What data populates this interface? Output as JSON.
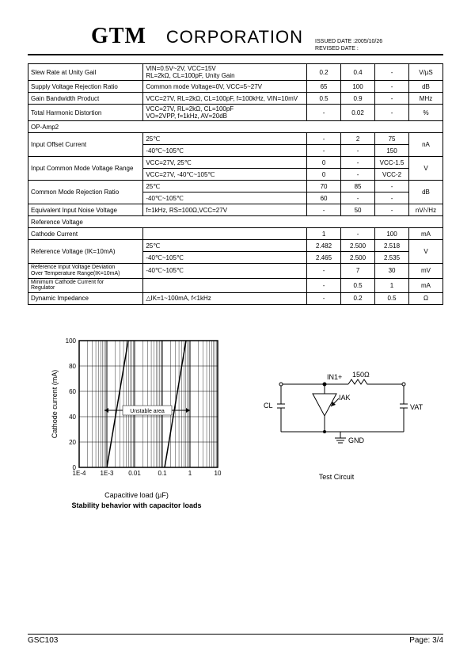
{
  "header": {
    "logo": "GTM",
    "corp": "CORPORATION",
    "issued_label": "ISSUED DATE  :2005/10/26",
    "revised_label": "REVISED DATE :"
  },
  "table": {
    "rows": [
      {
        "p": "Slew Rate at Unity Gail",
        "cond_a": "VIN=0.5V~2V, VCC=15V",
        "cond_b": "RL=2kΩ, CL=100pF, Unity Gain",
        "v1": "0.2",
        "v2": "0.4",
        "v3": "-",
        "u": "V/µS",
        "twocond": true
      },
      {
        "p": "Supply Voltage Rejection Ratio",
        "cond": "Common mode Voltage=0V, VCC=5~27V",
        "v1": "65",
        "v2": "100",
        "v3": "-",
        "u": "dB"
      },
      {
        "p": "Gain Bandwidth Product",
        "cond": "VCC=27V, RL=2kΩ, CL=100pF, f=100kHz, VIN=10mV",
        "v1": "0.5",
        "v2": "0.9",
        "v3": "-",
        "u": "MHz"
      },
      {
        "p": "Total Harmonic Distortion",
        "cond_a": "VCC=27V, RL=2kΩ, CL=100pF",
        "cond_b": "VO=2VPP, f=1kHz, AV=20dB",
        "v1": "-",
        "v2": "0.02",
        "v3": "-",
        "u": "%",
        "twocond": true
      },
      {
        "section": "OP-Amp2"
      },
      {
        "p": "Input Offset Current",
        "rows": [
          {
            "cond": "25℃",
            "v1": "-",
            "v2": "2",
            "v3": "75"
          },
          {
            "cond": "-40℃~105℃",
            "v1": "-",
            "v2": "-",
            "v3": "150"
          }
        ],
        "u": "nA"
      },
      {
        "p": "Input Common Mode Voltage Range",
        "rows": [
          {
            "cond": "VCC=27V, 25℃",
            "v1": "0",
            "v2": "-",
            "v3": "VCC-1.5"
          },
          {
            "cond": "VCC=27V, -40℃~105℃",
            "v1": "0",
            "v2": "-",
            "v3": "VCC-2"
          }
        ],
        "u": "V"
      },
      {
        "p": "Common Mode Rejection Ratio",
        "rows": [
          {
            "cond": "25℃",
            "v1": "70",
            "v2": "85",
            "v3": "-"
          },
          {
            "cond": "-40℃~105℃",
            "v1": "60",
            "v2": "-",
            "v3": "-"
          }
        ],
        "u": "dB"
      },
      {
        "p": "Equivalent Input Noise Voltage",
        "cond": "f=1kHz, RS=100Ω,VCC=27V",
        "v1": "-",
        "v2": "50",
        "v3": "-",
        "u": "nV/√Hz"
      },
      {
        "section": "Reference Voltage"
      },
      {
        "p": "Cathode Current",
        "cond": "",
        "v1": "1",
        "v2": "-",
        "v3": "100",
        "u": "mA"
      },
      {
        "p": "Reference Voltage (IK=10mA)",
        "rows": [
          {
            "cond": "25℃",
            "v1": "2.482",
            "v2": "2.500",
            "v3": "2.518"
          },
          {
            "cond": "-40℃~105℃",
            "v1": "2.465",
            "v2": "2.500",
            "v3": "2.535"
          }
        ],
        "u": "V"
      },
      {
        "p_a": "Reference Input Voltage Deviation",
        "p_b": "Over Temperature Range(IK=10mA)",
        "cond": "-40℃~105℃",
        "v1": "-",
        "v2": "7",
        "v3": "30",
        "u": "mV",
        "twoparam": true
      },
      {
        "p_a": "Minimum Cathode Current for",
        "p_b": "Regulator",
        "cond": "",
        "v1": "-",
        "v2": "0.5",
        "v3": "1",
        "u": "mA",
        "twoparam": true
      },
      {
        "p": "Dynamic Impedance",
        "cond": "△IK=1~100mA, f<1kHz",
        "v1": "-",
        "v2": "0.2",
        "v3": "0.5",
        "u": "Ω"
      }
    ]
  },
  "chart": {
    "type": "line",
    "title": "Stability behavior with capacitor loads",
    "xlabel": "Capacitive load (µF)",
    "ylabel": "Cathode current (mA)",
    "xscale": "log",
    "xticks": [
      "1E-4",
      "1E-3",
      "0.01",
      "0.1",
      "1",
      "10"
    ],
    "yticks": [
      0,
      20,
      40,
      60,
      80,
      100
    ],
    "ylim": [
      0,
      100
    ],
    "annotation": "Unstable area",
    "background_color": "#ffffff",
    "grid_color": "#000000",
    "line_color": "#000000"
  },
  "circuit": {
    "title": "Test Circuit",
    "labels": {
      "in": "IN1+",
      "r": "150Ω",
      "cl": "CL",
      "iak": "IAK",
      "vat": "VAT",
      "gnd": "GND"
    }
  },
  "footer": {
    "left": "GSC103",
    "right": "Page: 3/4"
  }
}
